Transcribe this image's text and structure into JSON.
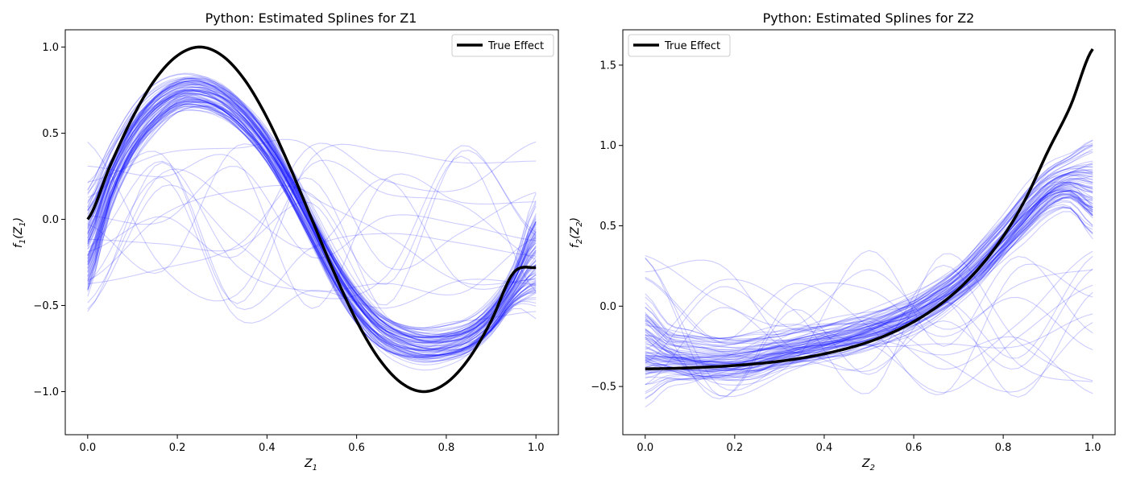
{
  "colors": {
    "true_effect": "#000000",
    "estimate": "#0000ff",
    "legend_border": "#cccccc",
    "axes": "#000000"
  },
  "chart_data": [
    {
      "type": "line",
      "title": "Python: Estimated Splines for Z1",
      "xlabel": "Z1",
      "ylabel": "f1(Z1)",
      "xlabel_parts": {
        "base": "Z",
        "sub": "1"
      },
      "ylabel_parts": {
        "pre": "f",
        "pre_sub": "1",
        "mid": "(Z",
        "mid_sub": "1",
        "post": ")"
      },
      "xlim": [
        -0.05,
        1.05
      ],
      "ylim": [
        -1.25,
        1.1
      ],
      "xticks": [
        0.0,
        0.2,
        0.4,
        0.6,
        0.8,
        1.0
      ],
      "xtick_labels": [
        "0.0",
        "0.2",
        "0.4",
        "0.6",
        "0.8",
        "1.0"
      ],
      "yticks": [
        -1.0,
        -0.5,
        0.0,
        0.5,
        1.0
      ],
      "ytick_labels": [
        "−1.0",
        "−0.5",
        "0.0",
        "0.5",
        "1.0"
      ],
      "grid": false,
      "legend": {
        "placement": "top-right",
        "entries": [
          "True Effect"
        ]
      },
      "true_series": {
        "name": "True Effect",
        "x": [
          0.0,
          0.05,
          0.1,
          0.15,
          0.2,
          0.25,
          0.3,
          0.35,
          0.4,
          0.45,
          0.5,
          0.55,
          0.6,
          0.65,
          0.7,
          0.75,
          0.8,
          0.85,
          0.9,
          0.95,
          1.0
        ],
        "y": [
          0.0,
          0.31,
          0.59,
          0.81,
          0.95,
          1.0,
          0.95,
          0.81,
          0.59,
          0.31,
          0.0,
          -0.31,
          -0.59,
          -0.81,
          -0.95,
          -1.0,
          -0.95,
          -0.81,
          -0.59,
          -0.31,
          -0.28
        ]
      },
      "estimate_bands": {
        "x": [
          0.0,
          0.05,
          0.1,
          0.15,
          0.2,
          0.25,
          0.3,
          0.35,
          0.4,
          0.45,
          0.5,
          0.55,
          0.6,
          0.65,
          0.7,
          0.75,
          0.8,
          0.85,
          0.9,
          0.95,
          1.0
        ],
        "centers": [
          -0.15,
          0.22,
          0.48,
          0.64,
          0.73,
          0.74,
          0.69,
          0.58,
          0.42,
          0.2,
          -0.05,
          -0.3,
          -0.5,
          -0.64,
          -0.71,
          -0.74,
          -0.73,
          -0.69,
          -0.58,
          -0.4,
          -0.2
        ],
        "spreads": [
          0.15,
          0.09,
          0.07,
          0.06,
          0.05,
          0.05,
          0.05,
          0.05,
          0.05,
          0.05,
          0.05,
          0.05,
          0.05,
          0.05,
          0.05,
          0.05,
          0.05,
          0.05,
          0.05,
          0.06,
          0.15
        ],
        "count": 85,
        "outlier_count": 15,
        "outlier_range": [
          -0.6,
          0.45
        ]
      }
    },
    {
      "type": "line",
      "title": "Python: Estimated Splines for Z2",
      "xlabel": "Z2",
      "ylabel": "f2(Z2)",
      "xlabel_parts": {
        "base": "Z",
        "sub": "2"
      },
      "ylabel_parts": {
        "pre": "f",
        "pre_sub": "2",
        "mid": "(Z",
        "mid_sub": "2",
        "post": ")"
      },
      "xlim": [
        -0.05,
        1.05
      ],
      "ylim": [
        -0.8,
        1.72
      ],
      "xticks": [
        0.0,
        0.2,
        0.4,
        0.6,
        0.8,
        1.0
      ],
      "xtick_labels": [
        "0.0",
        "0.2",
        "0.4",
        "0.6",
        "0.8",
        "1.0"
      ],
      "yticks": [
        -0.5,
        0.0,
        0.5,
        1.0,
        1.5
      ],
      "ytick_labels": [
        "−0.5",
        "0.0",
        "0.5",
        "1.0",
        "1.5"
      ],
      "grid": false,
      "legend": {
        "placement": "top-left",
        "entries": [
          "True Effect"
        ]
      },
      "true_series": {
        "name": "True Effect",
        "x": [
          0.0,
          0.05,
          0.1,
          0.15,
          0.2,
          0.25,
          0.3,
          0.35,
          0.4,
          0.45,
          0.5,
          0.55,
          0.6,
          0.65,
          0.7,
          0.75,
          0.8,
          0.85,
          0.9,
          0.95,
          1.0
        ],
        "y": [
          -0.39,
          -0.388,
          -0.384,
          -0.378,
          -0.369,
          -0.358,
          -0.343,
          -0.323,
          -0.297,
          -0.264,
          -0.222,
          -0.167,
          -0.097,
          -0.008,
          0.105,
          0.25,
          0.434,
          0.668,
          0.965,
          1.244,
          1.6
        ]
      },
      "estimate_bands": {
        "x": [
          0.0,
          0.05,
          0.1,
          0.15,
          0.2,
          0.25,
          0.3,
          0.35,
          0.4,
          0.45,
          0.5,
          0.55,
          0.6,
          0.65,
          0.7,
          0.75,
          0.8,
          0.85,
          0.9,
          0.95,
          1.0
        ],
        "centers": [
          -0.25,
          -0.3,
          -0.32,
          -0.33,
          -0.33,
          -0.31,
          -0.28,
          -0.25,
          -0.22,
          -0.19,
          -0.15,
          -0.1,
          -0.04,
          0.04,
          0.14,
          0.27,
          0.42,
          0.58,
          0.72,
          0.78,
          0.75
        ],
        "spreads": [
          0.16,
          0.09,
          0.08,
          0.07,
          0.07,
          0.07,
          0.06,
          0.06,
          0.06,
          0.06,
          0.06,
          0.06,
          0.06,
          0.06,
          0.06,
          0.07,
          0.07,
          0.08,
          0.08,
          0.09,
          0.16
        ],
        "count": 80,
        "outlier_count": 14,
        "outlier_range": [
          -0.6,
          0.35
        ]
      }
    }
  ]
}
